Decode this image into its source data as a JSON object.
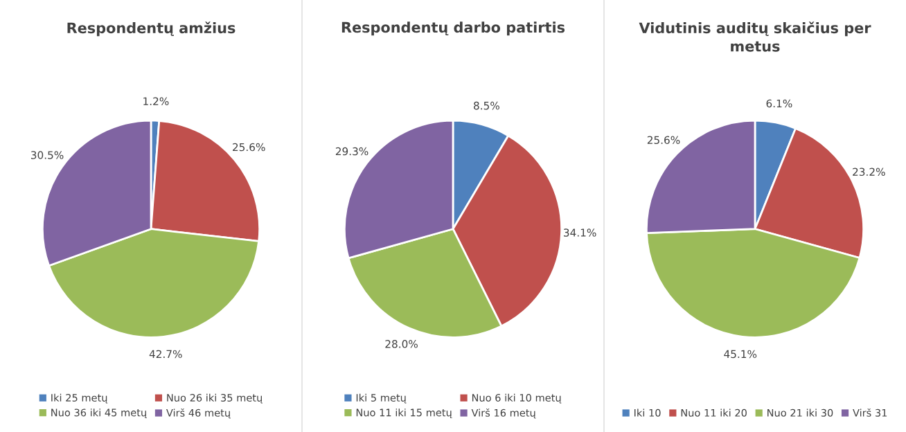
{
  "chart_data": [
    {
      "type": "pie",
      "title": "Respondentų amžius",
      "categories": [
        "Iki 25 metų",
        "Nuo 26 iki 35 metų",
        "Nuo 36 iki 45 metų",
        "Virš 46 metų"
      ],
      "values": [
        1.2,
        25.6,
        42.7,
        30.5
      ],
      "value_labels": [
        "1.2%",
        "25.6%",
        "42.7%",
        "30.5%"
      ],
      "colors": [
        "#4f81bd",
        "#c0504d",
        "#9bbb59",
        "#8064a2"
      ],
      "legend": "bottom"
    },
    {
      "type": "pie",
      "title": "Respondentų darbo patirtis",
      "categories": [
        "Iki 5 metų",
        "Nuo 6 iki 10 metų",
        "Nuo 11 iki 15 metų",
        "Virš 16 metų"
      ],
      "values": [
        8.5,
        34.1,
        28.0,
        29.3
      ],
      "value_labels": [
        "8.5%",
        "34.1%",
        "28.0%",
        "29.3%"
      ],
      "colors": [
        "#4f81bd",
        "#c0504d",
        "#9bbb59",
        "#8064a2"
      ],
      "legend": "bottom"
    },
    {
      "type": "pie",
      "title": "Vidutinis auditų skaičius per metus",
      "categories": [
        "Iki 10",
        "Nuo 11 iki 20",
        "Nuo 21 iki 30",
        "Virš 31"
      ],
      "values": [
        6.1,
        23.2,
        45.1,
        25.6
      ],
      "value_labels": [
        "6.1%",
        "23.2%",
        "45.1%",
        "25.6%"
      ],
      "colors": [
        "#4f81bd",
        "#c0504d",
        "#9bbb59",
        "#8064a2"
      ],
      "legend": "bottom"
    }
  ]
}
